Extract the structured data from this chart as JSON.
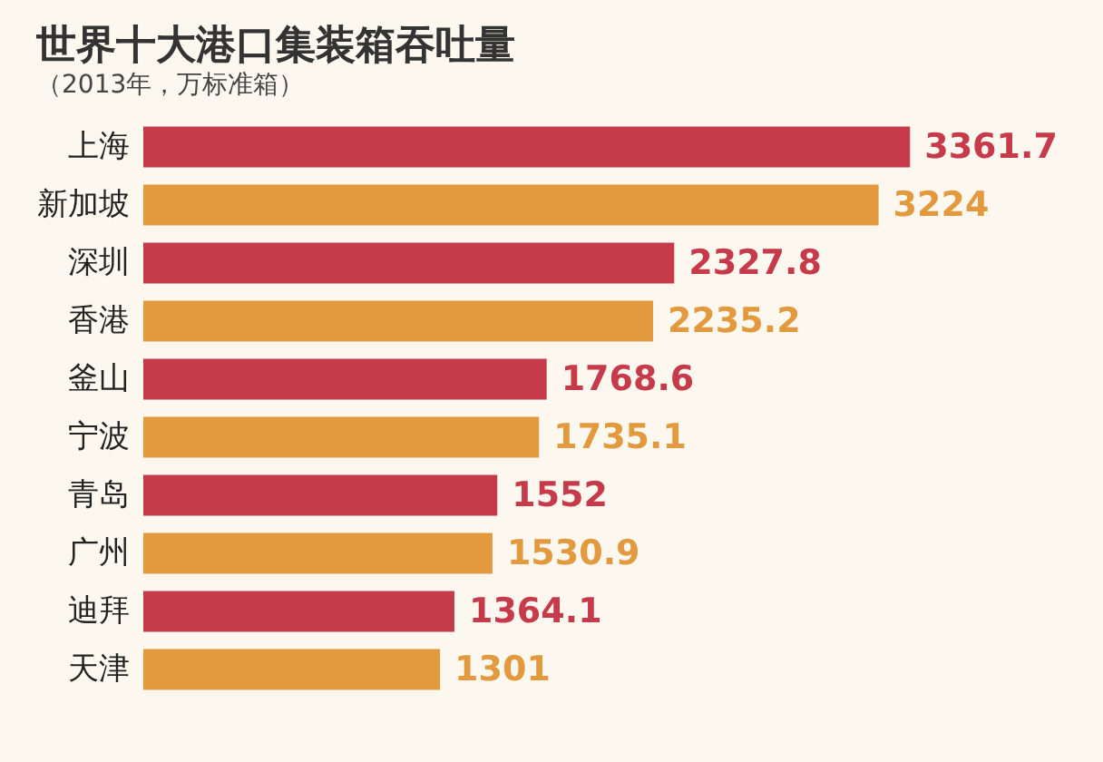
{
  "chart_data": {
    "type": "bar",
    "orientation": "horizontal",
    "title": "世界十大港口集装箱吞吐量",
    "subtitle": "（2013年，万标准箱）",
    "categories": [
      "上海",
      "新加坡",
      "深圳",
      "香港",
      "釜山",
      "宁波",
      "青岛",
      "广州",
      "迪拜",
      "天津"
    ],
    "values": [
      3361.7,
      3224,
      2327.8,
      2235.2,
      1768.6,
      1735.1,
      1552,
      1530.9,
      1364.1,
      1301
    ],
    "colors": [
      "#c73a4a",
      "#e39a3e",
      "#c73a4a",
      "#e39a3e",
      "#c73a4a",
      "#e39a3e",
      "#c73a4a",
      "#e39a3e",
      "#c73a4a",
      "#e39a3e"
    ],
    "data_labels": true
  }
}
